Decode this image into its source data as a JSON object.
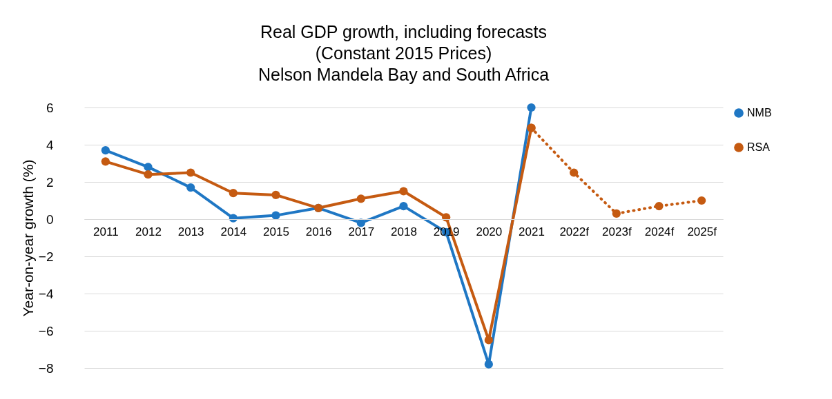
{
  "chart_data": {
    "type": "line",
    "title": "Real GDP growth, including forecasts\n(Constant 2015 Prices)\nNelson Mandela Bay and South Africa",
    "ylabel": "Year-on-year  growth (%)",
    "categories": [
      "2011",
      "2012",
      "2013",
      "2014",
      "2015",
      "2016",
      "2017",
      "2018",
      "2019",
      "2020",
      "2021",
      "2022f",
      "2023f",
      "2024f",
      "2025f"
    ],
    "series": [
      {
        "name": "NMB",
        "color": "#1f77c4",
        "values": [
          3.7,
          2.8,
          1.7,
          0.05,
          0.2,
          0.6,
          -0.2,
          0.7,
          -0.7,
          -7.8,
          6.0,
          null,
          null,
          null,
          null
        ]
      },
      {
        "name": "RSA",
        "color": "#c55a11",
        "values": [
          3.1,
          2.4,
          2.5,
          1.4,
          1.3,
          0.6,
          1.1,
          1.5,
          0.1,
          -6.5,
          4.9,
          null,
          null,
          null,
          null
        ]
      },
      {
        "color": "#c55a11",
        "line_style": "dotted",
        "values": [
          null,
          null,
          null,
          null,
          null,
          null,
          null,
          null,
          null,
          null,
          4.9,
          2.5,
          0.3,
          0.7,
          1.0
        ]
      }
    ],
    "ylim": [
      -8,
      6
    ],
    "yticks": [
      -8,
      -6,
      -4,
      -2,
      0,
      2,
      4,
      6
    ],
    "grid": "y",
    "legend": "right",
    "marker": "circle",
    "line_style": "solid"
  }
}
